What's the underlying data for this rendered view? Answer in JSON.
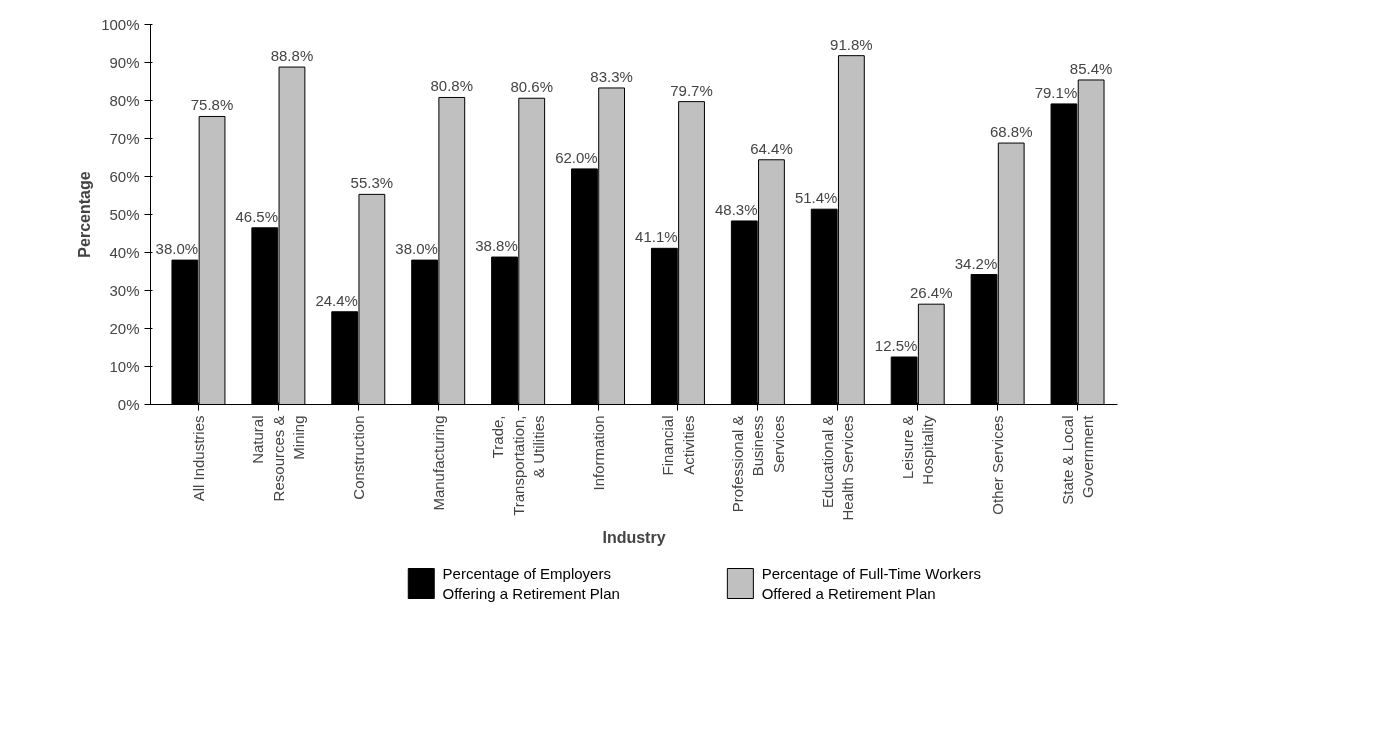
{
  "chart_data": {
    "type": "bar",
    "xlabel": "Industry",
    "ylabel": "Percentage",
    "categories": [
      "All Industries",
      "Natural\nResources &\nMining",
      "Construction",
      "Manufacturing",
      "Trade,\nTransportation,\n& Utilities",
      "Information",
      "Financial\nActivities",
      "Professional &\nBusiness\nServices",
      "Educational &\nHealth Services",
      "Leisure &\nHospitality",
      "Other Services",
      "State & Local\nGovernment"
    ],
    "series": [
      {
        "name": "Percentage of Employers\nOffering a Retirement Plan",
        "color": "#000000",
        "values": [
          38.0,
          46.5,
          24.4,
          38.0,
          38.8,
          62.0,
          41.1,
          48.3,
          51.4,
          12.5,
          34.2,
          79.1
        ],
        "value_labels": [
          "38.0%",
          "46.5%",
          "24.4%",
          "38.0%",
          "38.8%",
          "62.0%",
          "41.1%",
          "48.3%",
          "51.4%",
          "12.5%",
          "34.2%",
          "79.1%"
        ]
      },
      {
        "name": "Percentage of Full-Time Workers\nOffered a Retirement Plan",
        "color": "#c0c0c0",
        "values": [
          75.8,
          88.8,
          55.3,
          80.8,
          80.6,
          83.3,
          79.7,
          64.4,
          91.8,
          26.4,
          68.8,
          85.4
        ],
        "value_labels": [
          "75.8%",
          "88.8%",
          "55.3%",
          "80.8%",
          "80.6%",
          "83.3%",
          "79.7%",
          "64.4%",
          "91.8%",
          "26.4%",
          "68.8%",
          "85.4%"
        ]
      }
    ],
    "ylim": [
      0,
      100
    ],
    "yticks": [
      {
        "value": 0,
        "label": "0%"
      },
      {
        "value": 10,
        "label": "10%"
      },
      {
        "value": 20,
        "label": "20%"
      },
      {
        "value": 30,
        "label": "30%"
      },
      {
        "value": 40,
        "label": "40%"
      },
      {
        "value": 50,
        "label": "50%"
      },
      {
        "value": 60,
        "label": "60%"
      },
      {
        "value": 70,
        "label": "70%"
      },
      {
        "value": 80,
        "label": "80%"
      },
      {
        "value": 90,
        "label": "90%"
      },
      {
        "value": 100,
        "label": "100%"
      }
    ],
    "grid": false,
    "legend": "bottom"
  }
}
